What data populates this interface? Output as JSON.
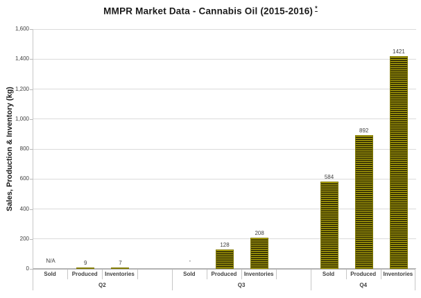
{
  "title": {
    "text": "MMPR Market Data - Cannabis Oil (2015-2016)",
    "footnote_marker": "*"
  },
  "chart_data": {
    "type": "bar",
    "title": "MMPR Market Data - Cannabis Oil (2015-2016) *",
    "ylabel": "Sales, Production & Inventory (kg)",
    "xlabel": "",
    "ylim": [
      0,
      1600
    ],
    "ytick_interval": 200,
    "ytick_labels": [
      "0",
      "200",
      "400",
      "600",
      "800",
      "1,000",
      "1,200",
      "1,400",
      "1,600"
    ],
    "grid": "horizontal",
    "legend": "none",
    "bar_style": {
      "fill": "#b2a60a",
      "stripe": "#1c1a02",
      "pattern": "horizontal-stripes"
    },
    "groups": [
      {
        "label": "Q2",
        "categories": [
          "Sold",
          "Produced",
          "Inventories"
        ],
        "values": [
          null,
          9,
          7
        ],
        "value_labels": [
          "N/A",
          "9",
          "7"
        ]
      },
      {
        "label": "Q3",
        "categories": [
          "Sold",
          "Produced",
          "Inventories"
        ],
        "values": [
          null,
          128,
          208
        ],
        "value_labels": [
          "-",
          "128",
          "208"
        ]
      },
      {
        "label": "Q4",
        "categories": [
          "Sold",
          "Produced",
          "Inventories"
        ],
        "values": [
          584,
          892,
          1421
        ],
        "value_labels": [
          "584",
          "892",
          "1421"
        ]
      }
    ]
  }
}
